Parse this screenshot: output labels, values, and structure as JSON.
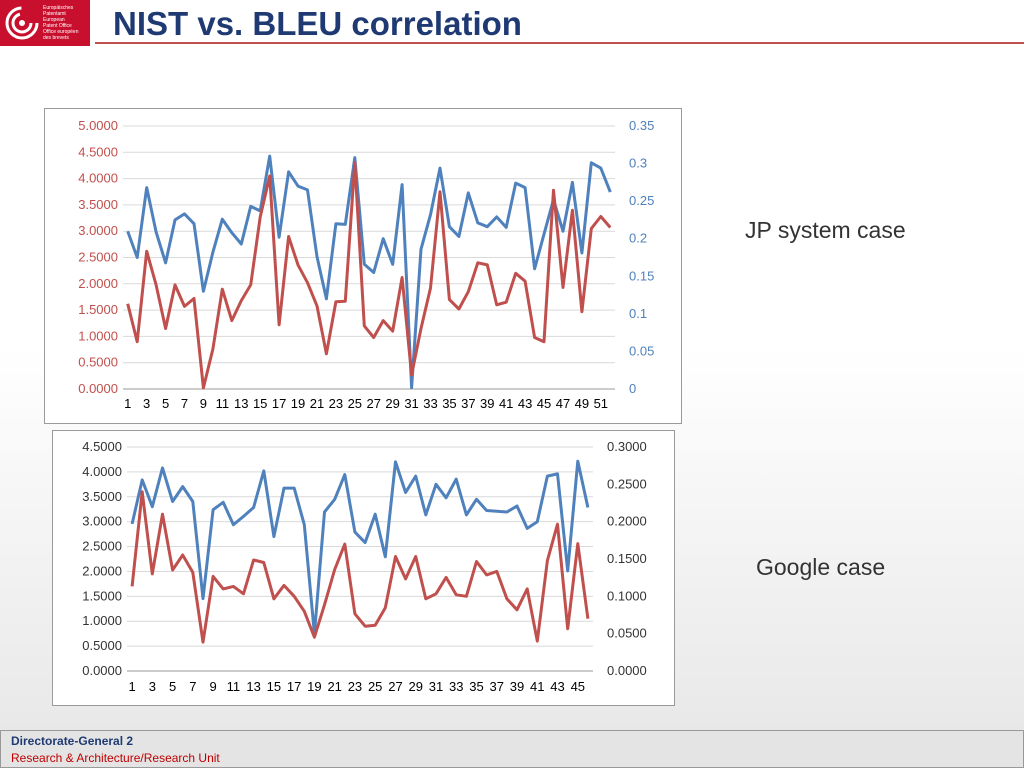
{
  "header": {
    "title": "NIST vs. BLEU correlation",
    "logo_lines": [
      "Europäisches",
      "Patentamt",
      "European",
      "Patent Office",
      "Office européen",
      "des brevets"
    ]
  },
  "labels": {
    "jp": "JP system case",
    "google": "Google case"
  },
  "footer": {
    "line1": "Directorate-General 2",
    "line2": "Research & Architecture/Research Unit"
  },
  "colors": {
    "blue": "#4f81bd",
    "red": "#c0504d",
    "brand": "#c8102e",
    "title": "#1f3a73"
  },
  "chart_data": [
    {
      "type": "line",
      "categories_count": 52,
      "x_tick_labels": [
        "1",
        "3",
        "5",
        "7",
        "9",
        "11",
        "13",
        "15",
        "17",
        "19",
        "21",
        "23",
        "25",
        "27",
        "29",
        "31",
        "33",
        "35",
        "37",
        "39",
        "41",
        "43",
        "45",
        "47",
        "49",
        "51"
      ],
      "y_left": {
        "ticks": [
          "0.0000",
          "0.5000",
          "1.0000",
          "1.5000",
          "2.0000",
          "2.5000",
          "3.0000",
          "3.5000",
          "4.0000",
          "4.5000",
          "5.0000"
        ],
        "min": 0,
        "max": 5,
        "color": "#c0504d"
      },
      "y_right": {
        "ticks": [
          "0",
          "0.05",
          "0.1",
          "0.15",
          "0.2",
          "0.25",
          "0.3",
          "0.35"
        ],
        "min": 0,
        "max": 0.35,
        "color": "#4f81bd"
      },
      "series": [
        {
          "axis": "left",
          "color": "#c0504d",
          "values": [
            1.62,
            0.9,
            2.62,
            1.98,
            1.15,
            1.98,
            1.57,
            1.72,
            0.02,
            0.76,
            1.9,
            1.3,
            1.68,
            1.98,
            3.27,
            4.05,
            1.22,
            2.9,
            2.36,
            2.02,
            1.58,
            0.67,
            1.66,
            1.67,
            4.3,
            1.2,
            0.98,
            1.3,
            1.1,
            2.12,
            0.27,
            1.15,
            1.92,
            3.75,
            1.7,
            1.52,
            1.85,
            2.4,
            2.36,
            1.6,
            1.65,
            2.2,
            2.05,
            0.98,
            0.9,
            3.78,
            1.93,
            3.4,
            1.47,
            3.05,
            3.28,
            3.07
          ]
        },
        {
          "axis": "right",
          "color": "#4f81bd",
          "values": [
            0.21,
            0.175,
            0.268,
            0.209,
            0.168,
            0.225,
            0.233,
            0.22,
            0.13,
            0.182,
            0.226,
            0.208,
            0.193,
            0.243,
            0.237,
            0.31,
            0.202,
            0.289,
            0.27,
            0.265,
            0.176,
            0.12,
            0.22,
            0.219,
            0.308,
            0.166,
            0.155,
            0.2,
            0.166,
            0.272,
            0.002,
            0.186,
            0.232,
            0.294,
            0.216,
            0.203,
            0.261,
            0.221,
            0.216,
            0.229,
            0.215,
            0.274,
            0.268,
            0.16,
            0.206,
            0.252,
            0.21,
            0.275,
            0.181,
            0.301,
            0.294,
            0.262
          ]
        }
      ]
    },
    {
      "type": "line",
      "categories_count": 46,
      "x_tick_labels": [
        "1",
        "3",
        "5",
        "7",
        "9",
        "11",
        "13",
        "15",
        "17",
        "19",
        "21",
        "23",
        "25",
        "27",
        "29",
        "31",
        "33",
        "35",
        "37",
        "39",
        "41",
        "43",
        "45"
      ],
      "y_left": {
        "ticks": [
          "0.0000",
          "0.5000",
          "1.0000",
          "1.5000",
          "2.0000",
          "2.5000",
          "3.0000",
          "3.5000",
          "4.0000",
          "4.5000"
        ],
        "min": 0,
        "max": 4.5,
        "color": "#333333"
      },
      "y_right": {
        "ticks": [
          "0.0000",
          "0.0500",
          "0.1000",
          "0.1500",
          "0.2000",
          "0.2500",
          "0.3000"
        ],
        "min": 0,
        "max": 0.3,
        "color": "#333333"
      },
      "series": [
        {
          "axis": "left",
          "color": "#c0504d",
          "values": [
            1.7,
            3.6,
            1.95,
            3.15,
            2.03,
            2.33,
            1.98,
            0.58,
            1.9,
            1.65,
            1.7,
            1.55,
            2.23,
            2.18,
            1.45,
            1.72,
            1.5,
            1.2,
            0.68,
            1.33,
            2.04,
            2.55,
            1.15,
            0.9,
            0.92,
            1.27,
            2.3,
            1.85,
            2.3,
            1.45,
            1.55,
            1.88,
            1.53,
            1.5,
            2.2,
            1.93,
            2.0,
            1.45,
            1.23,
            1.65,
            0.6,
            2.22,
            2.95,
            0.85,
            2.56,
            1.05
          ]
        },
        {
          "axis": "right",
          "color": "#4f81bd",
          "values": [
            0.197,
            0.256,
            0.22,
            0.272,
            0.227,
            0.247,
            0.227,
            0.097,
            0.216,
            0.226,
            0.196,
            0.207,
            0.219,
            0.268,
            0.18,
            0.245,
            0.245,
            0.196,
            0.05,
            0.213,
            0.23,
            0.263,
            0.186,
            0.172,
            0.21,
            0.153,
            0.28,
            0.239,
            0.261,
            0.209,
            0.25,
            0.232,
            0.257,
            0.209,
            0.23,
            0.215,
            0.214,
            0.213,
            0.221,
            0.191,
            0.2,
            0.261,
            0.264,
            0.134,
            0.281,
            0.219
          ]
        }
      ]
    }
  ]
}
